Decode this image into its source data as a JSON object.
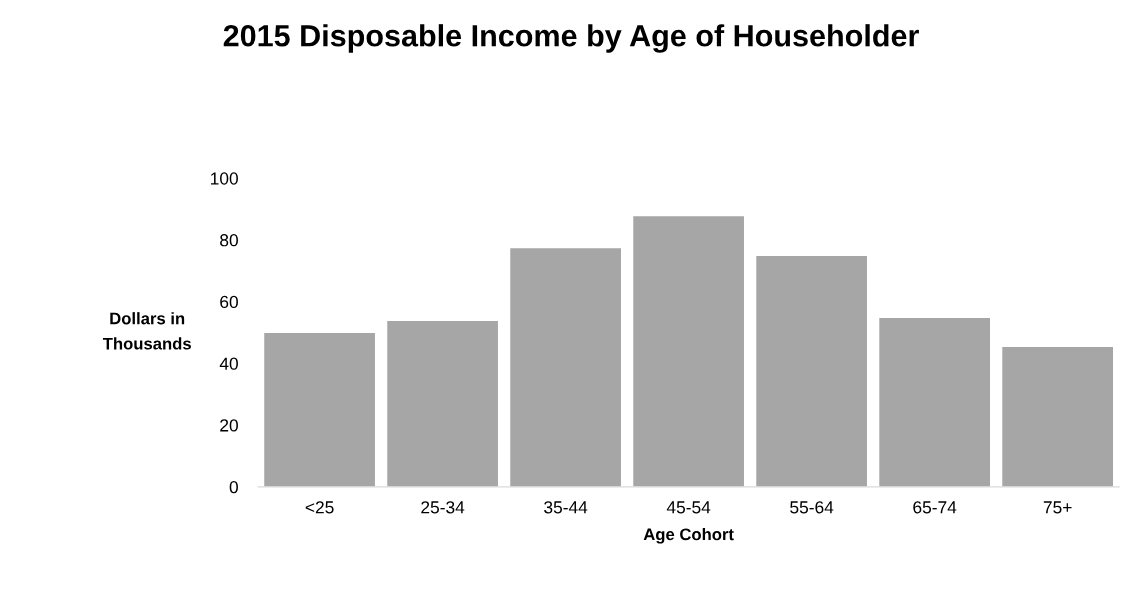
{
  "chart_data": {
    "type": "bar",
    "title": "2015 Disposable Income by Age of Householder",
    "xlabel": "Age Cohort",
    "ylabel": "Dollars in Thousands",
    "categories": [
      "<25",
      "25-34",
      "35-44",
      "45-54",
      "55-64",
      "65-74",
      "75+"
    ],
    "values": [
      49.8,
      53.7,
      77.3,
      87.7,
      74.8,
      54.7,
      45.3
    ],
    "color": "#a6a6a6",
    "ylim": [
      0,
      100
    ],
    "yticks": [
      0,
      20,
      40,
      60,
      80,
      100
    ],
    "grid": false,
    "legend": false
  }
}
